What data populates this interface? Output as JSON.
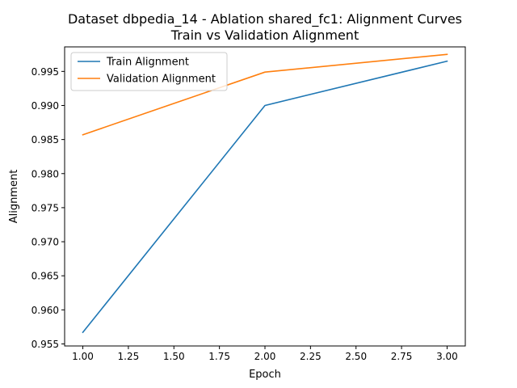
{
  "chart_data": {
    "type": "line",
    "title": "Dataset dbpedia_14 - Ablation shared_fc1: Alignment Curves",
    "subtitle": "Train vs Validation Alignment",
    "xlabel": "Epoch",
    "ylabel": "Alignment",
    "x": [
      1.0,
      2.0,
      3.0
    ],
    "series": [
      {
        "name": "Train Alignment",
        "color": "#1f77b4",
        "values": [
          0.9567,
          0.99,
          0.9965
        ]
      },
      {
        "name": "Validation Alignment",
        "color": "#ff7f0e",
        "values": [
          0.9857,
          0.9949,
          0.9975
        ]
      }
    ],
    "xlim": [
      0.9,
      3.1
    ],
    "ylim": [
      0.9547,
      0.9986
    ],
    "xticks": [
      1.0,
      1.25,
      1.5,
      1.75,
      2.0,
      2.25,
      2.5,
      2.75,
      3.0
    ],
    "xtick_labels": [
      "1.00",
      "1.25",
      "1.50",
      "1.75",
      "2.00",
      "2.25",
      "2.50",
      "2.75",
      "3.00"
    ],
    "yticks": [
      0.955,
      0.96,
      0.965,
      0.97,
      0.975,
      0.98,
      0.985,
      0.99,
      0.995
    ],
    "ytick_labels": [
      "0.955",
      "0.960",
      "0.965",
      "0.970",
      "0.975",
      "0.980",
      "0.985",
      "0.990",
      "0.995"
    ],
    "grid": false,
    "legend_position": "top-left"
  }
}
